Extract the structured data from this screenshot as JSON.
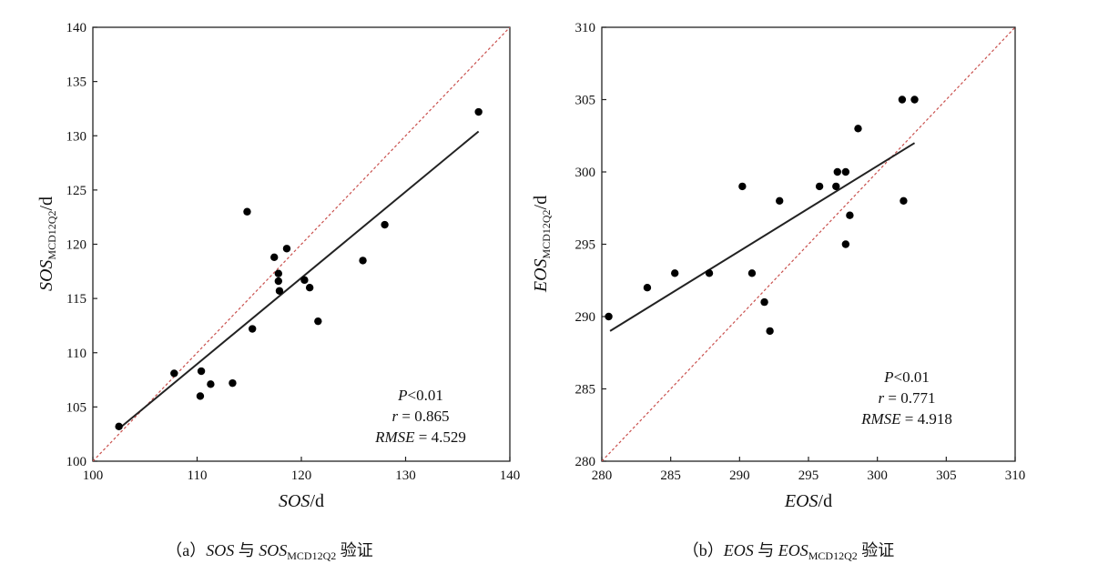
{
  "chart_data": [
    {
      "type": "scatter",
      "xlabel_var": "SOS",
      "xlabel_unit": "/d",
      "ylabel_var": "SOS",
      "ylabel_sub": "MCD12Q2",
      "ylabel_unit": "/d",
      "xlim": [
        100,
        140
      ],
      "ylim": [
        100,
        140
      ],
      "xticks": [
        100,
        110,
        120,
        130,
        140
      ],
      "yticks": [
        100,
        105,
        110,
        115,
        120,
        125,
        130,
        135,
        140
      ],
      "points": [
        {
          "x": 102.5,
          "y": 103.2
        },
        {
          "x": 107.8,
          "y": 108.1
        },
        {
          "x": 110.4,
          "y": 108.3
        },
        {
          "x": 110.3,
          "y": 106.0
        },
        {
          "x": 111.3,
          "y": 107.1
        },
        {
          "x": 113.4,
          "y": 107.2
        },
        {
          "x": 114.8,
          "y": 123.0
        },
        {
          "x": 115.3,
          "y": 112.2
        },
        {
          "x": 117.4,
          "y": 118.8
        },
        {
          "x": 117.8,
          "y": 117.3
        },
        {
          "x": 117.8,
          "y": 116.6
        },
        {
          "x": 117.9,
          "y": 115.7
        },
        {
          "x": 118.6,
          "y": 119.6
        },
        {
          "x": 120.3,
          "y": 116.7
        },
        {
          "x": 120.8,
          "y": 116.0
        },
        {
          "x": 121.6,
          "y": 112.9
        },
        {
          "x": 125.9,
          "y": 118.5
        },
        {
          "x": 128.0,
          "y": 121.8
        },
        {
          "x": 137.0,
          "y": 132.2
        }
      ],
      "fit_line": [
        [
          102.5,
          103.0
        ],
        [
          137.0,
          130.4
        ]
      ],
      "identity_line": [
        [
          100,
          100
        ],
        [
          140,
          140
        ]
      ],
      "annotation": {
        "p_label": "P",
        "p_value": "<0.01",
        "r_label": "r",
        "r_value": " = 0.865",
        "rmse_label": "RMSE",
        "rmse_value": " = 4.529"
      },
      "caption": {
        "prefix": "（a）",
        "var1": "SOS",
        "conj": " 与 ",
        "var2": "SOS",
        "sub": "MCD12Q2",
        "suffix": " 验证"
      }
    },
    {
      "type": "scatter",
      "xlabel_var": "EOS",
      "xlabel_unit": "/d",
      "ylabel_var": "EOS",
      "ylabel_sub": "MCD12Q2",
      "ylabel_unit": "/d",
      "xlim": [
        280,
        310
      ],
      "ylim": [
        280,
        310
      ],
      "xticks": [
        280,
        285,
        290,
        295,
        300,
        305,
        310
      ],
      "yticks": [
        280,
        285,
        290,
        295,
        300,
        305,
        310
      ],
      "points": [
        {
          "x": 280.5,
          "y": 290.0
        },
        {
          "x": 283.3,
          "y": 292.0
        },
        {
          "x": 285.3,
          "y": 293.0
        },
        {
          "x": 287.8,
          "y": 293.0
        },
        {
          "x": 290.2,
          "y": 299.0
        },
        {
          "x": 290.9,
          "y": 293.0
        },
        {
          "x": 291.8,
          "y": 291.0
        },
        {
          "x": 292.2,
          "y": 289.0
        },
        {
          "x": 292.9,
          "y": 298.0
        },
        {
          "x": 295.8,
          "y": 299.0
        },
        {
          "x": 297.0,
          "y": 299.0
        },
        {
          "x": 297.1,
          "y": 300.0
        },
        {
          "x": 297.7,
          "y": 300.0
        },
        {
          "x": 297.7,
          "y": 295.0
        },
        {
          "x": 298.0,
          "y": 297.0
        },
        {
          "x": 298.6,
          "y": 303.0
        },
        {
          "x": 301.8,
          "y": 305.0
        },
        {
          "x": 301.9,
          "y": 298.0
        },
        {
          "x": 302.7,
          "y": 305.0
        }
      ],
      "fit_line": [
        [
          280.6,
          289.0
        ],
        [
          302.7,
          302.0
        ]
      ],
      "identity_line": [
        [
          280,
          280
        ],
        [
          310,
          310
        ]
      ],
      "annotation": {
        "p_label": "P",
        "p_value": "<0.01",
        "r_label": "r",
        "r_value": " = 0.771",
        "rmse_label": "RMSE",
        "rmse_value": " = 4.918"
      },
      "caption": {
        "prefix": "（b）",
        "var1": "EOS",
        "conj": " 与 ",
        "var2": "EOS",
        "sub": "MCD12Q2",
        "suffix": " 验证"
      }
    }
  ]
}
